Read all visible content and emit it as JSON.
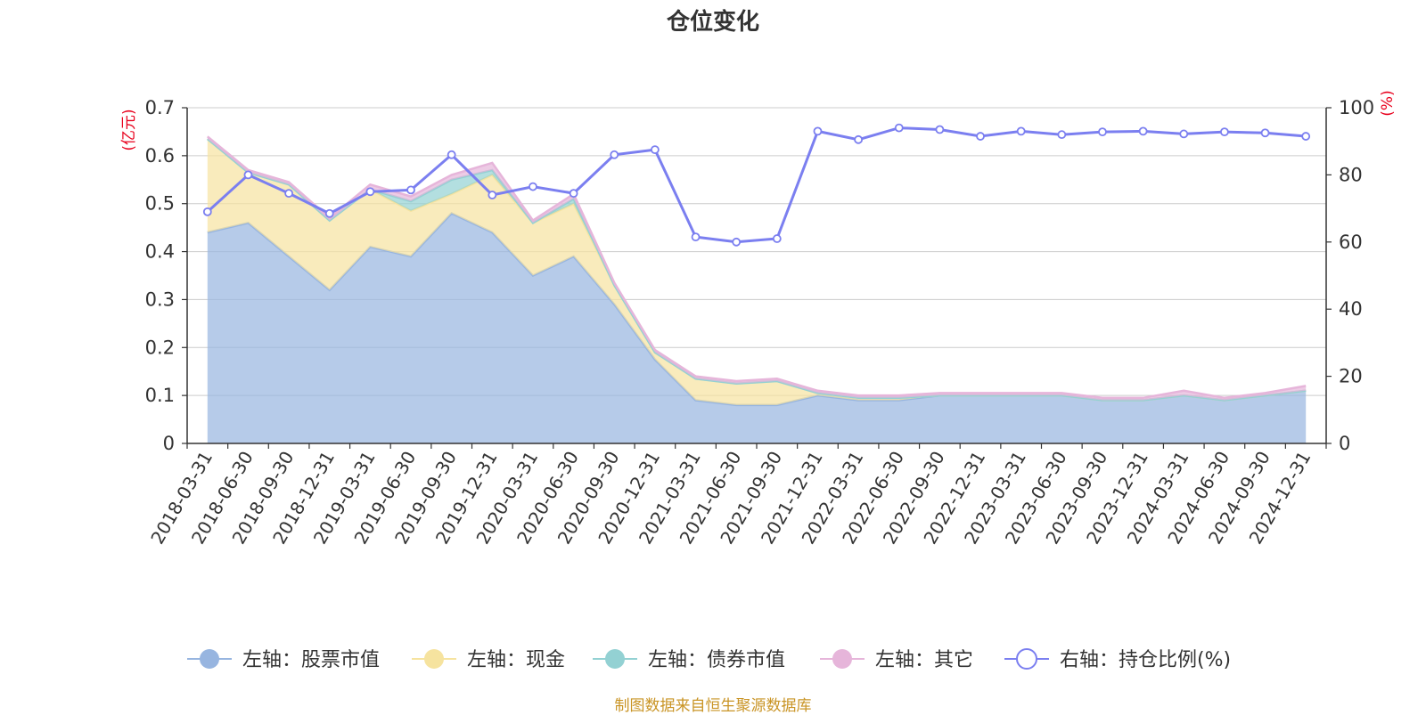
{
  "chart_data": {
    "type": "area",
    "title": "仓位变化",
    "y_left_label": "(亿元)",
    "y_right_label": "(%)",
    "ylim_left": [
      0,
      0.7
    ],
    "yticks_left": [
      "0",
      "0.1",
      "0.2",
      "0.3",
      "0.4",
      "0.5",
      "0.6",
      "0.7"
    ],
    "ylim_right": [
      0,
      100
    ],
    "yticks_right": [
      "0",
      "20",
      "40",
      "60",
      "80",
      "100"
    ],
    "categories": [
      "2018-03-31",
      "2018-06-30",
      "2018-09-30",
      "2018-12-31",
      "2019-03-31",
      "2019-06-30",
      "2019-09-30",
      "2019-12-31",
      "2020-03-31",
      "2020-06-30",
      "2020-09-30",
      "2020-12-31",
      "2021-03-31",
      "2021-06-30",
      "2021-09-30",
      "2021-12-31",
      "2022-03-31",
      "2022-06-30",
      "2022-09-30",
      "2022-12-31",
      "2023-03-31",
      "2023-06-30",
      "2023-09-30",
      "2023-12-31",
      "2024-03-31",
      "2024-06-30",
      "2024-09-30",
      "2024-12-31"
    ],
    "series": [
      {
        "name": "左轴：股票市值",
        "axis": "left",
        "color": "#97b5e0",
        "values": [
          0.44,
          0.46,
          0.39,
          0.32,
          0.41,
          0.39,
          0.48,
          0.44,
          0.35,
          0.39,
          0.29,
          0.175,
          0.09,
          0.08,
          0.08,
          0.1,
          0.09,
          0.09,
          0.1,
          0.1,
          0.1,
          0.1,
          0.09,
          0.09,
          0.1,
          0.09,
          0.1,
          0.11
        ]
      },
      {
        "name": "左轴：现金",
        "axis": "left",
        "color": "#f6e39f",
        "values": [
          0.195,
          0.105,
          0.15,
          0.145,
          0.12,
          0.095,
          0.04,
          0.12,
          0.11,
          0.11,
          0.04,
          0.015,
          0.045,
          0.045,
          0.05,
          0.005,
          0.005,
          0.005,
          0,
          0,
          0,
          0,
          0,
          0,
          0,
          0,
          0,
          0
        ]
      },
      {
        "name": "左轴：债券市值",
        "axis": "left",
        "color": "#93d1d3",
        "values": [
          0,
          0,
          0,
          0,
          0,
          0.02,
          0.03,
          0.01,
          0,
          0.01,
          0,
          0,
          0,
          0,
          0,
          0,
          0,
          0,
          0,
          0,
          0,
          0,
          0,
          0,
          0,
          0,
          0,
          0
        ]
      },
      {
        "name": "左轴：其它",
        "axis": "left",
        "color": "#e6b5da",
        "values": [
          0.005,
          0.005,
          0.005,
          0.005,
          0.01,
          0.01,
          0.01,
          0.015,
          0.005,
          0.01,
          0.005,
          0.005,
          0.005,
          0.005,
          0.005,
          0.005,
          0.005,
          0.005,
          0.005,
          0.005,
          0.005,
          0.005,
          0.005,
          0.005,
          0.01,
          0.005,
          0.005,
          0.01
        ]
      },
      {
        "name": "右轴：持仓比例(%)",
        "axis": "right",
        "color": "#7b7ff0",
        "values": [
          69,
          80,
          74.5,
          68.5,
          75,
          75.5,
          86,
          74,
          76.5,
          74.5,
          86,
          87.5,
          61.5,
          60,
          61,
          93,
          90.5,
          94,
          93.5,
          91.5,
          93,
          92,
          92.8,
          93,
          92.2,
          92.8,
          92.5,
          91.5
        ]
      }
    ],
    "legend_position": "bottom",
    "grid": true
  },
  "source_note": "制图数据来自恒生聚源数据库",
  "colors": {
    "axis_label_red": "#e8001c",
    "source_text": "#c99425",
    "grid": "#cccccc"
  }
}
